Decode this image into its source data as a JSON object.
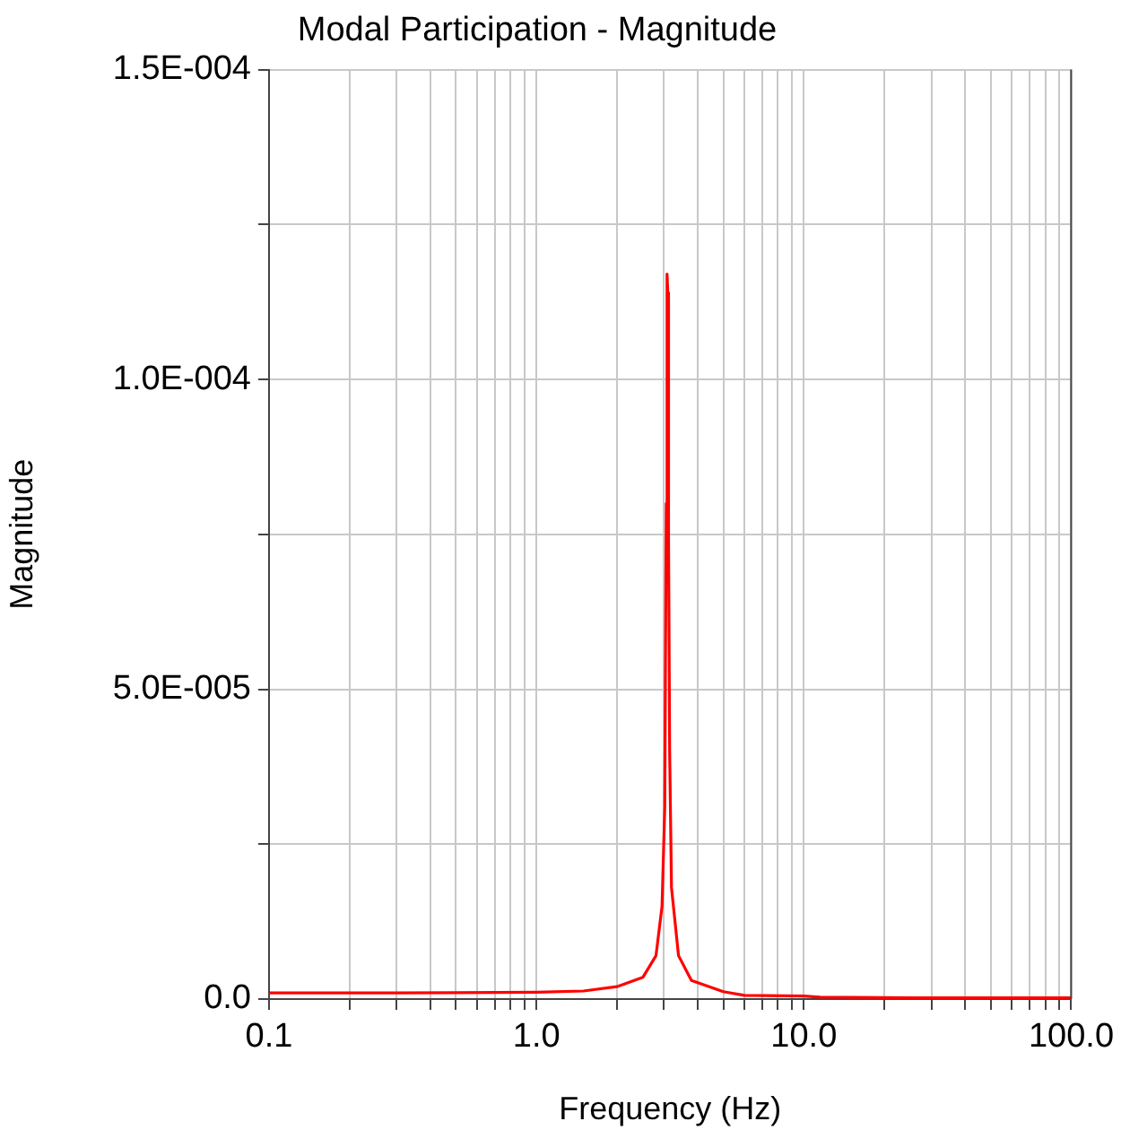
{
  "chart_data": {
    "type": "line",
    "title": "Modal Participation - Magnitude",
    "xlabel": "Frequency (Hz)",
    "ylabel": "Magnitude",
    "log": "x",
    "x": [
      0.1,
      0.3,
      1.0,
      1.5,
      2.0,
      2.5,
      2.8,
      2.95,
      3.02,
      3.06,
      3.08,
      3.1,
      3.12,
      3.15,
      3.2,
      3.4,
      3.8,
      5,
      6,
      10,
      11.5,
      30,
      100
    ],
    "series": [
      {
        "color": "#ff0000",
        "values": [
          1e-06,
          1e-06,
          1.1e-06,
          1.3e-06,
          2e-06,
          3.5e-06,
          7e-06,
          1.5e-05,
          3.1e-05,
          8e-05,
          0.000117,
          0.000114,
          7.4e-05,
          4e-05,
          1.8e-05,
          7e-06,
          3e-06,
          1.2e-06,
          6e-07,
          5e-07,
          3e-07,
          2e-07,
          2e-07
        ]
      }
    ],
    "xlim": [
      0.1,
      100
    ],
    "xticks": [
      {
        "value": 0.1,
        "label": "0.1"
      },
      {
        "value": 0.2,
        "label": null
      },
      {
        "value": 0.3,
        "label": null
      },
      {
        "value": 0.4,
        "label": null
      },
      {
        "value": 0.5,
        "label": null
      },
      {
        "value": 0.6,
        "label": null
      },
      {
        "value": 0.7,
        "label": null
      },
      {
        "value": 0.8,
        "label": null
      },
      {
        "value": 0.9,
        "label": null
      },
      {
        "value": 1,
        "label": "1.0"
      },
      {
        "value": 2,
        "label": null
      },
      {
        "value": 3,
        "label": null
      },
      {
        "value": 4,
        "label": null
      },
      {
        "value": 5,
        "label": null
      },
      {
        "value": 6,
        "label": null
      },
      {
        "value": 7,
        "label": null
      },
      {
        "value": 8,
        "label": null
      },
      {
        "value": 9,
        "label": null
      },
      {
        "value": 10,
        "label": "10.0"
      },
      {
        "value": 20,
        "label": null
      },
      {
        "value": 30,
        "label": null
      },
      {
        "value": 40,
        "label": null
      },
      {
        "value": 50,
        "label": null
      },
      {
        "value": 60,
        "label": null
      },
      {
        "value": 70,
        "label": null
      },
      {
        "value": 80,
        "label": null
      },
      {
        "value": 90,
        "label": null
      },
      {
        "value": 100,
        "label": "100.0"
      }
    ],
    "ylim": [
      0,
      0.00015
    ],
    "yticks": [
      {
        "value": 0,
        "label": "0.0"
      },
      {
        "value": 2.5e-05,
        "label": null
      },
      {
        "value": 5e-05,
        "label": "5.0E-005"
      },
      {
        "value": 7.5e-05,
        "label": null
      },
      {
        "value": 0.0001,
        "label": "1.0E-004"
      },
      {
        "value": 0.000125,
        "label": null
      },
      {
        "value": 0.00015,
        "label": "1.5E-004"
      }
    ],
    "grid": true,
    "legend": false,
    "marker": "none",
    "line_style": "solid"
  }
}
